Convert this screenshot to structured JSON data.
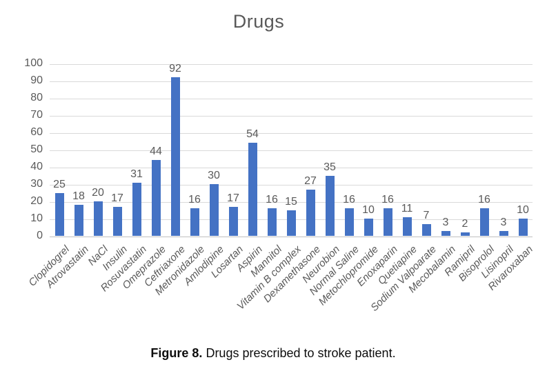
{
  "chart_data": {
    "type": "bar",
    "title": "Drugs",
    "categories": [
      "Clopidogrel",
      "Atrovastatin",
      "NaCl",
      "Insulin",
      "Rosuvastatin",
      "Omeprazole",
      "Ceftriaxone",
      "Metronidazole",
      "Amlodipine",
      "Losartan",
      "Aspirin",
      "Mannitol",
      "Vitamin B complex",
      "Dexamethasone",
      "Neurobion",
      "Normal Saline",
      "Metochlopromide",
      "Enoxaparin",
      "Quetiapine",
      "Sodium Valpoarate",
      "Mecobalamin",
      "Ramipril",
      "Bisoprolol",
      "Lisinopril",
      "Rivaroxaban"
    ],
    "values": [
      25,
      18,
      20,
      17,
      31,
      44,
      92,
      16,
      30,
      17,
      54,
      16,
      15,
      27,
      35,
      16,
      10,
      16,
      11,
      7,
      3,
      2,
      16,
      3,
      10
    ],
    "xlabel": "",
    "ylabel": "",
    "ylim": [
      0,
      100
    ],
    "yticks": [
      0,
      10,
      20,
      30,
      40,
      50,
      60,
      70,
      80,
      90,
      100
    ],
    "grid": true,
    "legend": "none",
    "data_labels": true,
    "bar_color": "#4472c4",
    "gridline_color": "#d9d9d9",
    "axis_color": "#bfbfbf",
    "text_color": "#595959"
  },
  "caption": {
    "prefix": "Figure 8.",
    "text": " Drugs prescribed to stroke patient."
  }
}
